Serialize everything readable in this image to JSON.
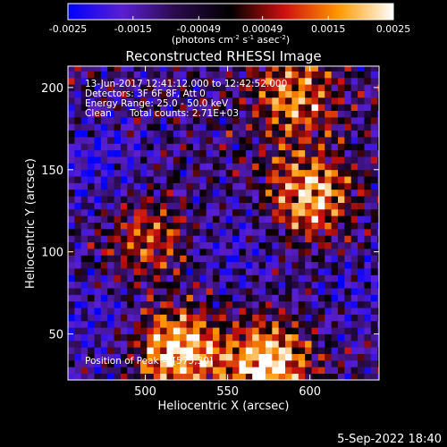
{
  "chart_data": {
    "type": "heatmap",
    "title": "Reconstructed RHESSI Image",
    "xlabel": "Heliocentric X (arcsec)",
    "ylabel": "Heliocentric Y (arcsec)",
    "xlim": [
      453,
      642
    ],
    "ylim": [
      22,
      213
    ],
    "x_ticks": [
      500,
      550,
      600
    ],
    "y_ticks": [
      50,
      100,
      150,
      200
    ],
    "colorbar": {
      "range": [
        -0.0025,
        0.0025
      ],
      "ticks": [
        "-0.0025",
        "-0.0015",
        "-0.00049",
        "0.00049",
        "0.0015",
        "0.0025"
      ],
      "unit_parts": [
        "(photons cm",
        "-2",
        " s",
        "-1",
        " asec",
        "-2",
        ")"
      ],
      "colors": [
        "#0000ff",
        "#5a1fd2",
        "#2a0a4a",
        "#000000",
        "#d01010",
        "#ff9a00",
        "#ffffff"
      ]
    },
    "annotations": [
      "13-Jun-2017 12:41:12.000 to 12:42:52.000",
      "Detectors: 3F 6F 8F, Att 0",
      "Energy Range: 25.0 - 50.0 keV",
      "Clean",
      "Total counts: 2.71E+03"
    ],
    "peak_label": "Position of Peak = [575,30]",
    "peak": [
      575,
      30
    ],
    "grid": false,
    "bright_sources": [
      {
        "x": 520,
        "y": 40,
        "amplitude": 1.0
      },
      {
        "x": 575,
        "y": 32,
        "amplitude": 1.0
      },
      {
        "x": 600,
        "y": 135,
        "amplitude": 0.85
      },
      {
        "x": 590,
        "y": 195,
        "amplitude": 0.7
      },
      {
        "x": 500,
        "y": 110,
        "amplitude": 0.55
      }
    ],
    "dim_regions": [
      {
        "x": 475,
        "y": 150,
        "amplitude": -0.8
      },
      {
        "x": 470,
        "y": 60,
        "amplitude": -0.6
      },
      {
        "x": 555,
        "y": 100,
        "amplitude": -0.55
      },
      {
        "x": 630,
        "y": 75,
        "amplitude": -0.5
      }
    ]
  },
  "footer": {
    "date": "5-Sep-2022 18:40"
  }
}
